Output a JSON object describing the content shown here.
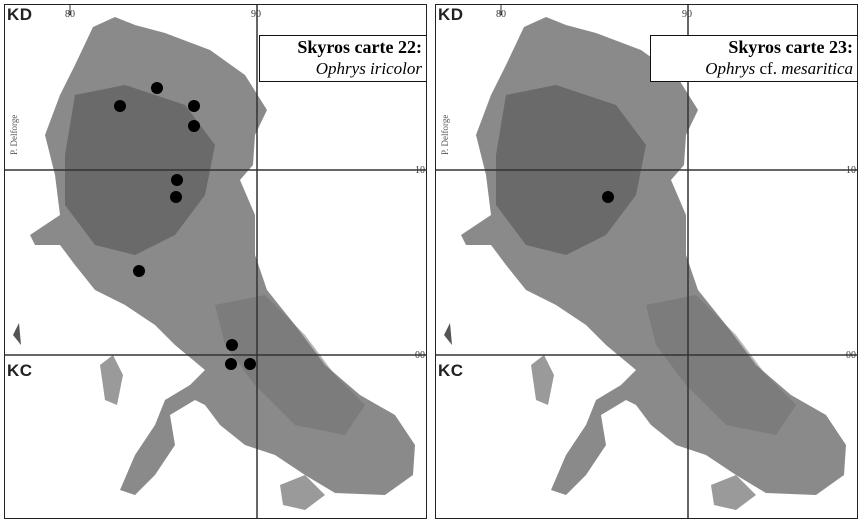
{
  "colors": {
    "land": "#8f8f8f",
    "land_dark": "#5a5a5a",
    "grid": "#333333",
    "dot": "#000000"
  },
  "panels": [
    {
      "id": "left",
      "title": "Skyros carte 22:",
      "species_italic": "Ophrys iricolor",
      "species_plain": "",
      "square_top": "KD",
      "square_bottom": "KC",
      "tick_80": "80",
      "tick_90": "90",
      "tick_10": "10",
      "tick_00": "00",
      "credit": "P. Delforge"
    },
    {
      "id": "right",
      "title": "Skyros carte 23:",
      "species_italic": "Ophrys",
      "species_plain": " cf. ",
      "species_italic2": "mesaritica",
      "square_top": "KD",
      "square_bottom": "KC",
      "tick_80": "80",
      "tick_90": "90",
      "tick_10": "10",
      "tick_00": "00",
      "credit": "P. Delforge"
    }
  ]
}
